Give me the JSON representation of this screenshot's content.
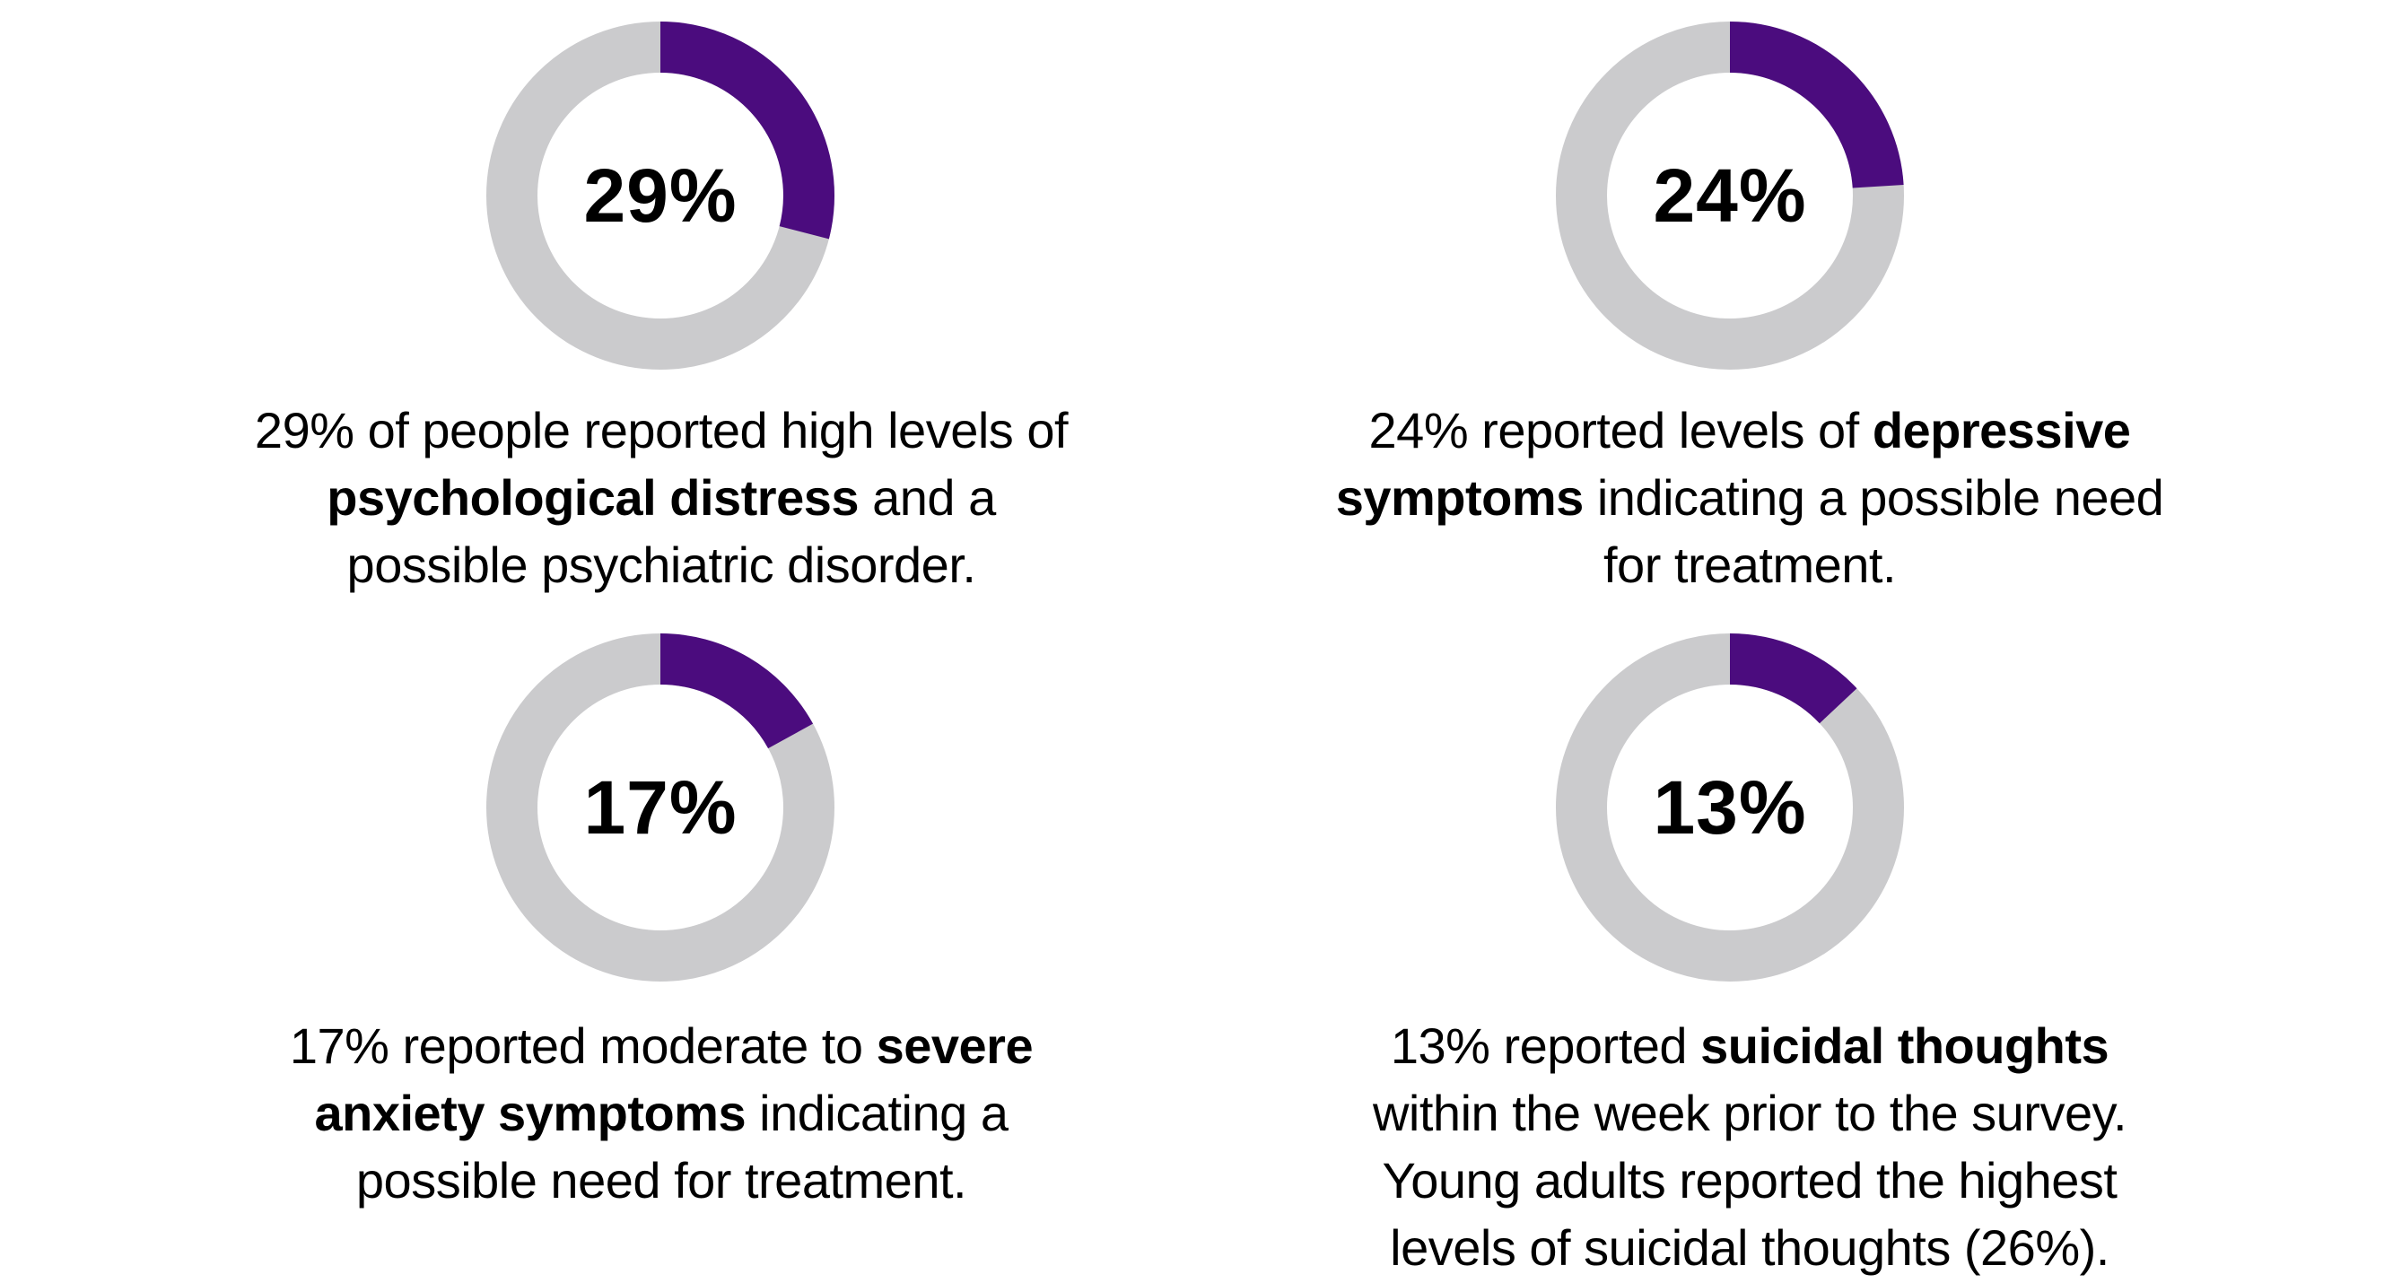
{
  "page": {
    "background": "#FFFFFF",
    "text_color": "#000000"
  },
  "chart_data": {
    "type": "donut",
    "units": "percent",
    "legend": "none",
    "accent_color": "#4B0C7E",
    "track_color": "#CBCBCD",
    "arc_start": "12-oclock-clockwise",
    "items": [
      {
        "id": "psychological-distress",
        "value": 29,
        "value_label": "29%",
        "caption_text": "29% of people reported high levels of psychological distress and a possible psychiatric disorder.",
        "caption_lines": [
          [
            {
              "t": "29% of people reported high levels of",
              "b": false
            }
          ],
          [
            {
              "t": "psychological distress",
              "b": true
            },
            {
              "t": " and a",
              "b": false
            }
          ],
          [
            {
              "t": "possible psychiatric disorder.",
              "b": false
            }
          ]
        ]
      },
      {
        "id": "depressive-symptoms",
        "value": 24,
        "value_label": "24%",
        "caption_text": "24% reported levels of depressive symptoms indicating a possible need for treatment.",
        "caption_lines": [
          [
            {
              "t": "24% reported levels of ",
              "b": false
            },
            {
              "t": "depressive",
              "b": true
            }
          ],
          [
            {
              "t": "symptoms",
              "b": true
            },
            {
              "t": " indicating a possible need",
              "b": false
            }
          ],
          [
            {
              "t": "for treatment.",
              "b": false
            }
          ]
        ]
      },
      {
        "id": "anxiety-symptoms",
        "value": 17,
        "value_label": "17%",
        "caption_text": "17% reported moderate to severe anxiety symptoms indicating a possible need for treatment.",
        "caption_lines": [
          [
            {
              "t": "17% reported moderate to ",
              "b": false
            },
            {
              "t": "severe",
              "b": true
            }
          ],
          [
            {
              "t": "anxiety symptoms",
              "b": true
            },
            {
              "t": " indicating a",
              "b": false
            }
          ],
          [
            {
              "t": "possible need for treatment.",
              "b": false
            }
          ]
        ]
      },
      {
        "id": "suicidal-thoughts",
        "value": 13,
        "value_label": "13%",
        "highest_subgroup_value": "26%",
        "caption_text": "13% reported suicidal thoughts within the week prior to the survey. Young adults reported the highest levels of suicidal thoughts (26%).",
        "caption_lines": [
          [
            {
              "t": "13% reported ",
              "b": false
            },
            {
              "t": "suicidal thoughts",
              "b": true
            }
          ],
          [
            {
              "t": "within the week prior to the survey.",
              "b": false
            }
          ],
          [
            {
              "t": "Young adults reported the highest",
              "b": false
            }
          ],
          [
            {
              "t": "levels of suicidal thoughts (26%).",
              "b": false
            }
          ]
        ]
      }
    ]
  }
}
